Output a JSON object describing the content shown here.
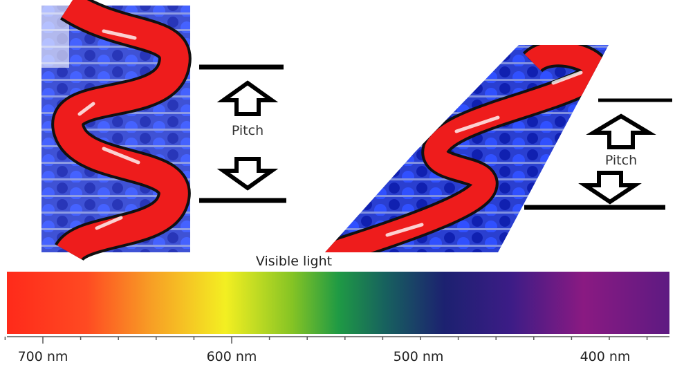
{
  "left_helix": {
    "label": "Pitch"
  },
  "right_helix": {
    "label": "Pitch"
  },
  "spectrum": {
    "title": "Visible light",
    "tick_labels": [
      "700 nm",
      "600 nm",
      "500 nm",
      "400 nm"
    ]
  }
}
